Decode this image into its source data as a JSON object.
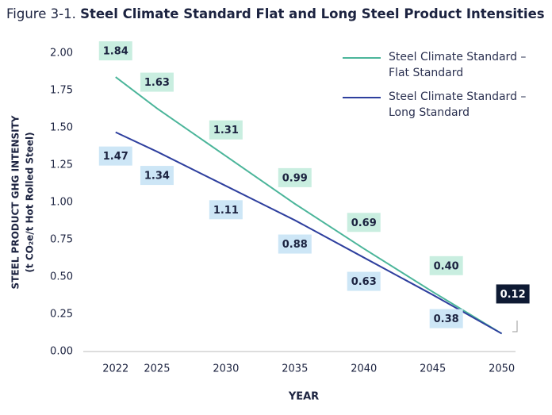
{
  "chart_data": {
    "type": "line",
    "figure_label": "Figure 3-1.",
    "title": "Steel Climate Standard Flat and Long Steel Product Intensities",
    "ylabel": [
      "STEEL PRODUCT GHG INTENSITY",
      "(t CO₂e/t Hot Rolled Steel)"
    ],
    "xlabel": "YEAR",
    "x": [
      2022,
      2025,
      2030,
      2035,
      2040,
      2045,
      2050
    ],
    "xlim": [
      2020,
      2051
    ],
    "xticks": [
      2022,
      2025,
      2030,
      2035,
      2040,
      2045,
      2050
    ],
    "ylim": [
      0,
      2
    ],
    "yticks": [
      {
        "value": 0,
        "label": "0.00"
      },
      {
        "value": 0.25,
        "label": "0.25"
      },
      {
        "value": 0.5,
        "label": "0.50"
      },
      {
        "value": 0.75,
        "label": "0.75"
      },
      {
        "value": 1,
        "label": "1.00"
      },
      {
        "value": 1.25,
        "label": "1.25"
      },
      {
        "value": 1.5,
        "label": "1.50"
      },
      {
        "value": 1.75,
        "label": "1.75"
      },
      {
        "value": 2,
        "label": "2.00"
      }
    ],
    "series": [
      {
        "name": "Steel Climate Standard – Flat Standard",
        "color": "#4bb59a",
        "label_fill": "#c9eee0",
        "values": [
          1.84,
          1.63,
          1.31,
          0.99,
          0.69,
          0.4,
          0.12
        ],
        "value_labels": [
          "1.84",
          "1.63",
          "1.31",
          "0.99",
          "0.69",
          "0.40",
          null
        ]
      },
      {
        "name": "Steel Climate Standard – Long Standard",
        "color": "#2e3f9e",
        "label_fill": "#cde6f6",
        "values": [
          1.47,
          1.34,
          1.11,
          0.88,
          0.63,
          0.38,
          0.12
        ],
        "value_labels": [
          "1.47",
          "1.34",
          "1.11",
          "0.88",
          "0.63",
          "0.38",
          "0.12"
        ]
      }
    ]
  }
}
